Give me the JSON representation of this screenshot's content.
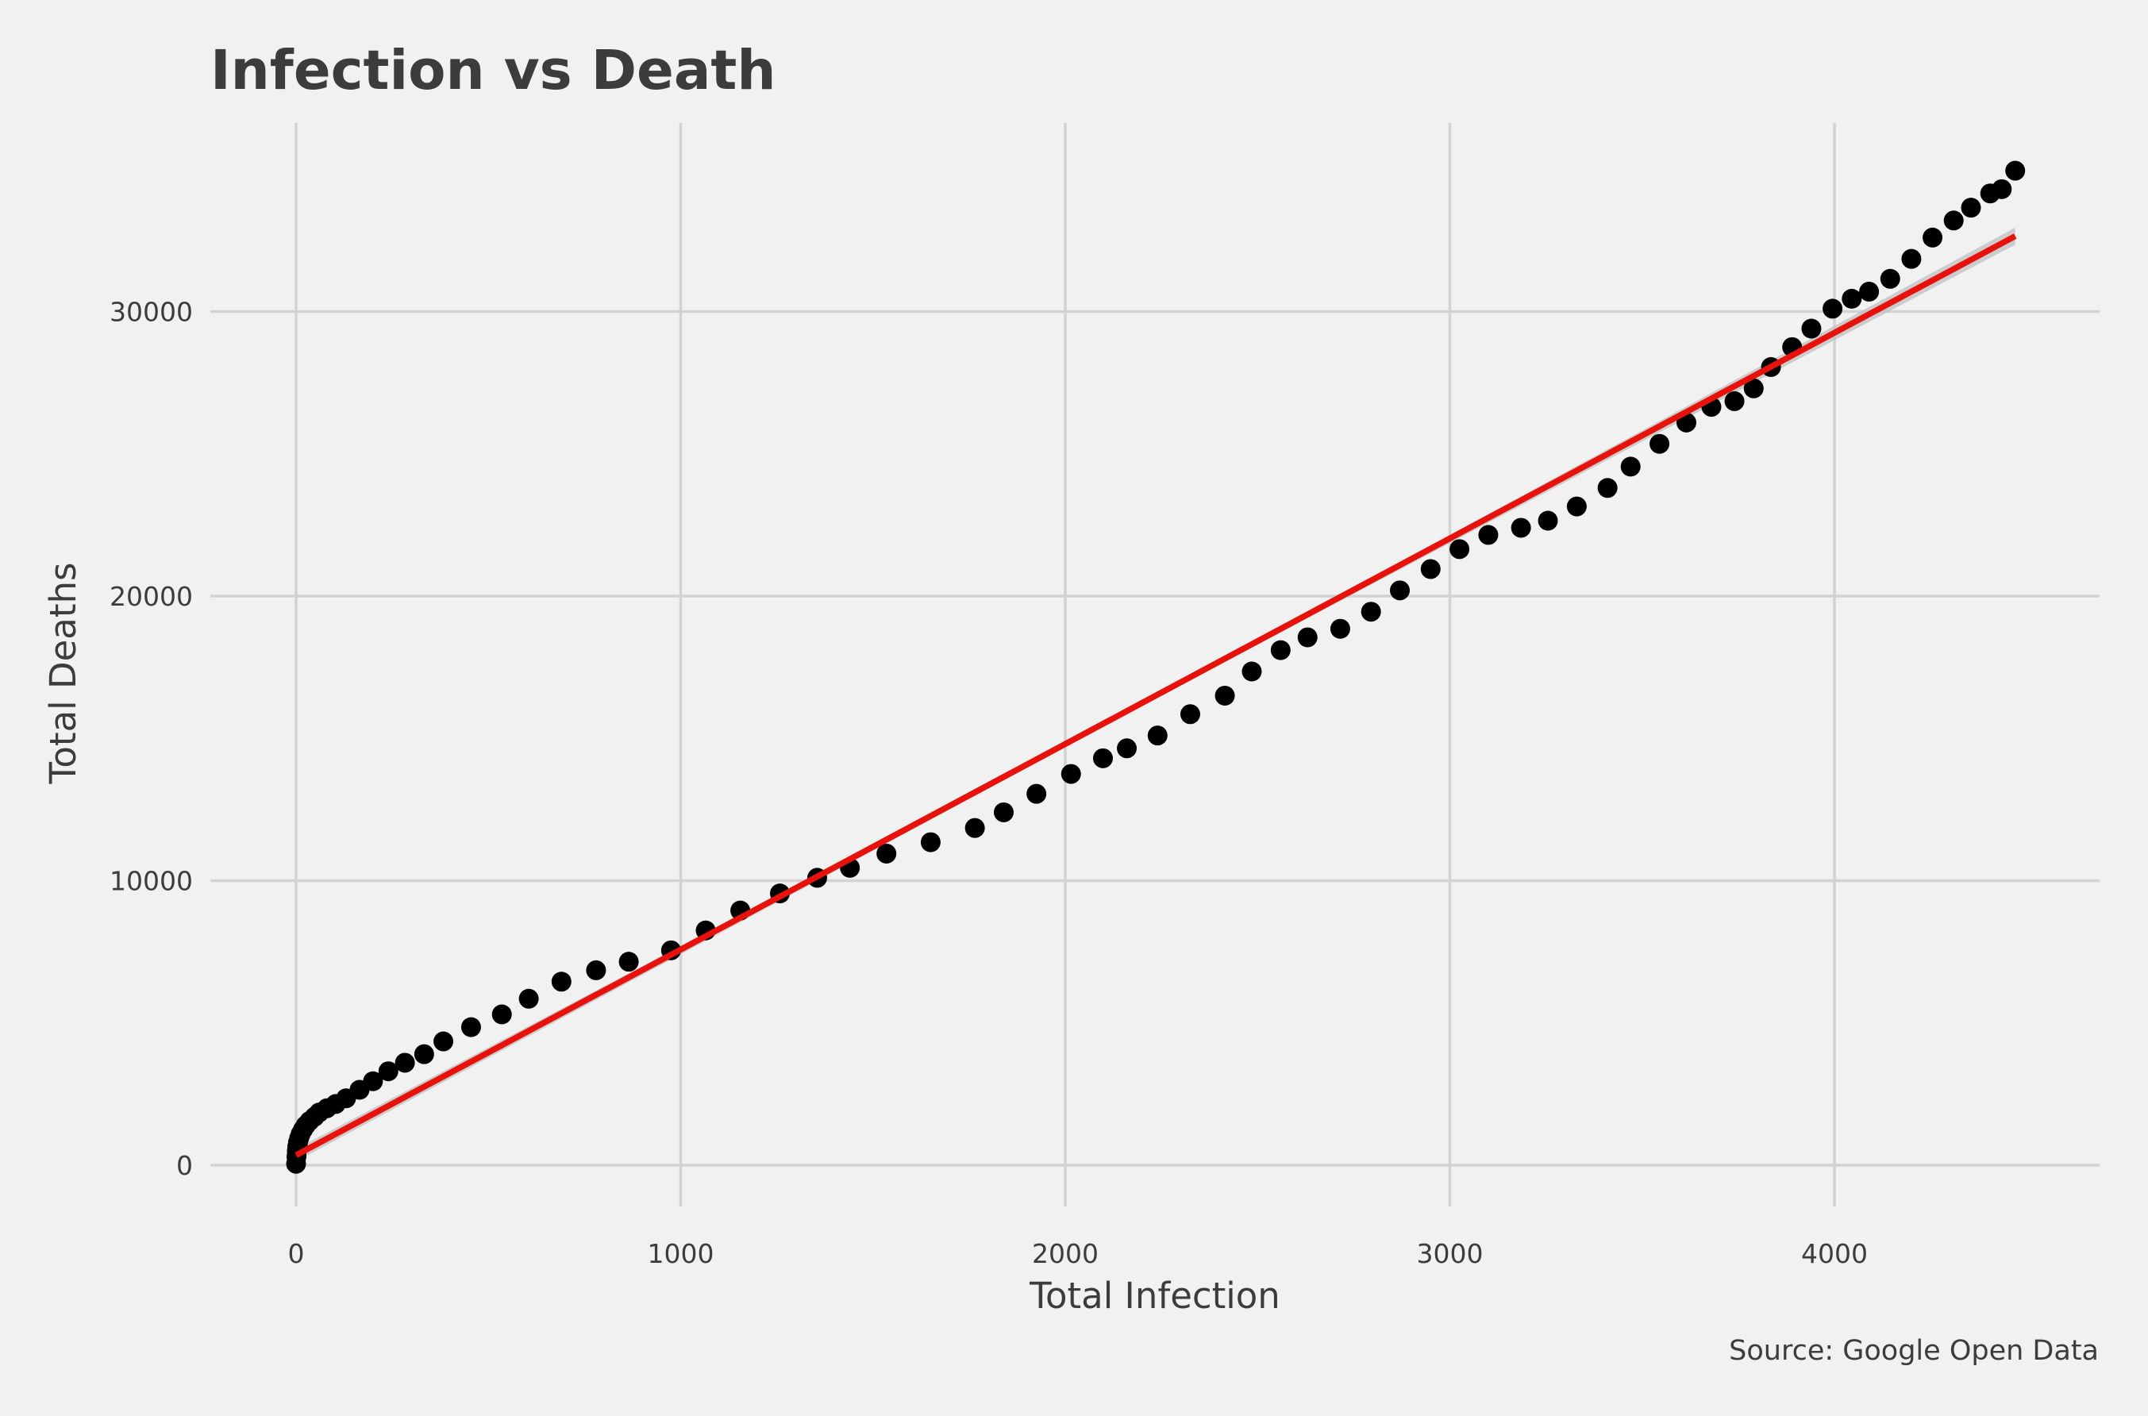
{
  "chart_data": {
    "type": "scatter",
    "title": "Infection vs Death",
    "xlabel": "Total Infection",
    "ylabel": "Total Deaths",
    "caption": "Source: Google Open Data",
    "xlim": [
      -220,
      4700
    ],
    "ylim": [
      -1900,
      36800
    ],
    "x_ticks": [
      0,
      1000,
      2000,
      3000,
      4000
    ],
    "x_tick_labels": [
      "0",
      "1000",
      "2000",
      "3000",
      "4000"
    ],
    "y_ticks": [
      0,
      10000,
      20000,
      30000
    ],
    "y_tick_labels": [
      "0",
      "10000",
      "20000",
      "30000"
    ],
    "grid": true,
    "legend": "none",
    "point_color": "#000000",
    "fit_color": "#e8120c",
    "band_color": "#bfbfbf",
    "background": "#f1f1f1",
    "points": {
      "x": [
        0,
        1,
        2,
        3,
        5,
        8,
        12,
        18,
        25,
        35,
        48,
        60,
        80,
        103,
        130,
        165,
        200,
        240,
        283,
        333,
        383,
        455,
        535,
        605,
        690,
        780,
        865,
        975,
        1065,
        1155,
        1258,
        1355,
        1440,
        1535,
        1650,
        1765,
        1840,
        1925,
        2015,
        2098,
        2160,
        2240,
        2325,
        2415,
        2485,
        2560,
        2630,
        2715,
        2795,
        2870,
        2950,
        3025,
        3100,
        3185,
        3255,
        3330,
        3410,
        3470,
        3545,
        3615,
        3680,
        3740,
        3790,
        3835,
        3890,
        3940,
        3995,
        4045,
        4090,
        4145,
        4200,
        4255,
        4310,
        4355,
        4405,
        4435,
        4470
      ],
      "y": [
        50,
        300,
        500,
        650,
        800,
        950,
        1100,
        1250,
        1400,
        1550,
        1700,
        1850,
        2000,
        2150,
        2350,
        2650,
        2950,
        3300,
        3600,
        3900,
        4350,
        4850,
        5300,
        5850,
        6450,
        6850,
        7150,
        7550,
        8250,
        8950,
        9550,
        10100,
        10450,
        10950,
        11350,
        11850,
        12400,
        13050,
        13750,
        14300,
        14650,
        15100,
        15850,
        16500,
        17350,
        18100,
        18550,
        18850,
        19450,
        20200,
        20950,
        21650,
        22150,
        22400,
        22650,
        23150,
        23800,
        24550,
        25350,
        26100,
        26650,
        26850,
        27300,
        28050,
        28750,
        29400,
        30100,
        30450,
        30700,
        31150,
        31850,
        32600,
        33200,
        33650,
        34150,
        34300,
        34950
      ]
    },
    "fit_line": {
      "x": [
        0,
        4470
      ],
      "y": [
        350,
        32650
      ]
    },
    "fit_band": {
      "x": [
        0,
        2240,
        4470
      ],
      "y_upper": [
        570,
        16560,
        32950
      ],
      "y_lower": [
        130,
        16440,
        32350
      ]
    }
  }
}
